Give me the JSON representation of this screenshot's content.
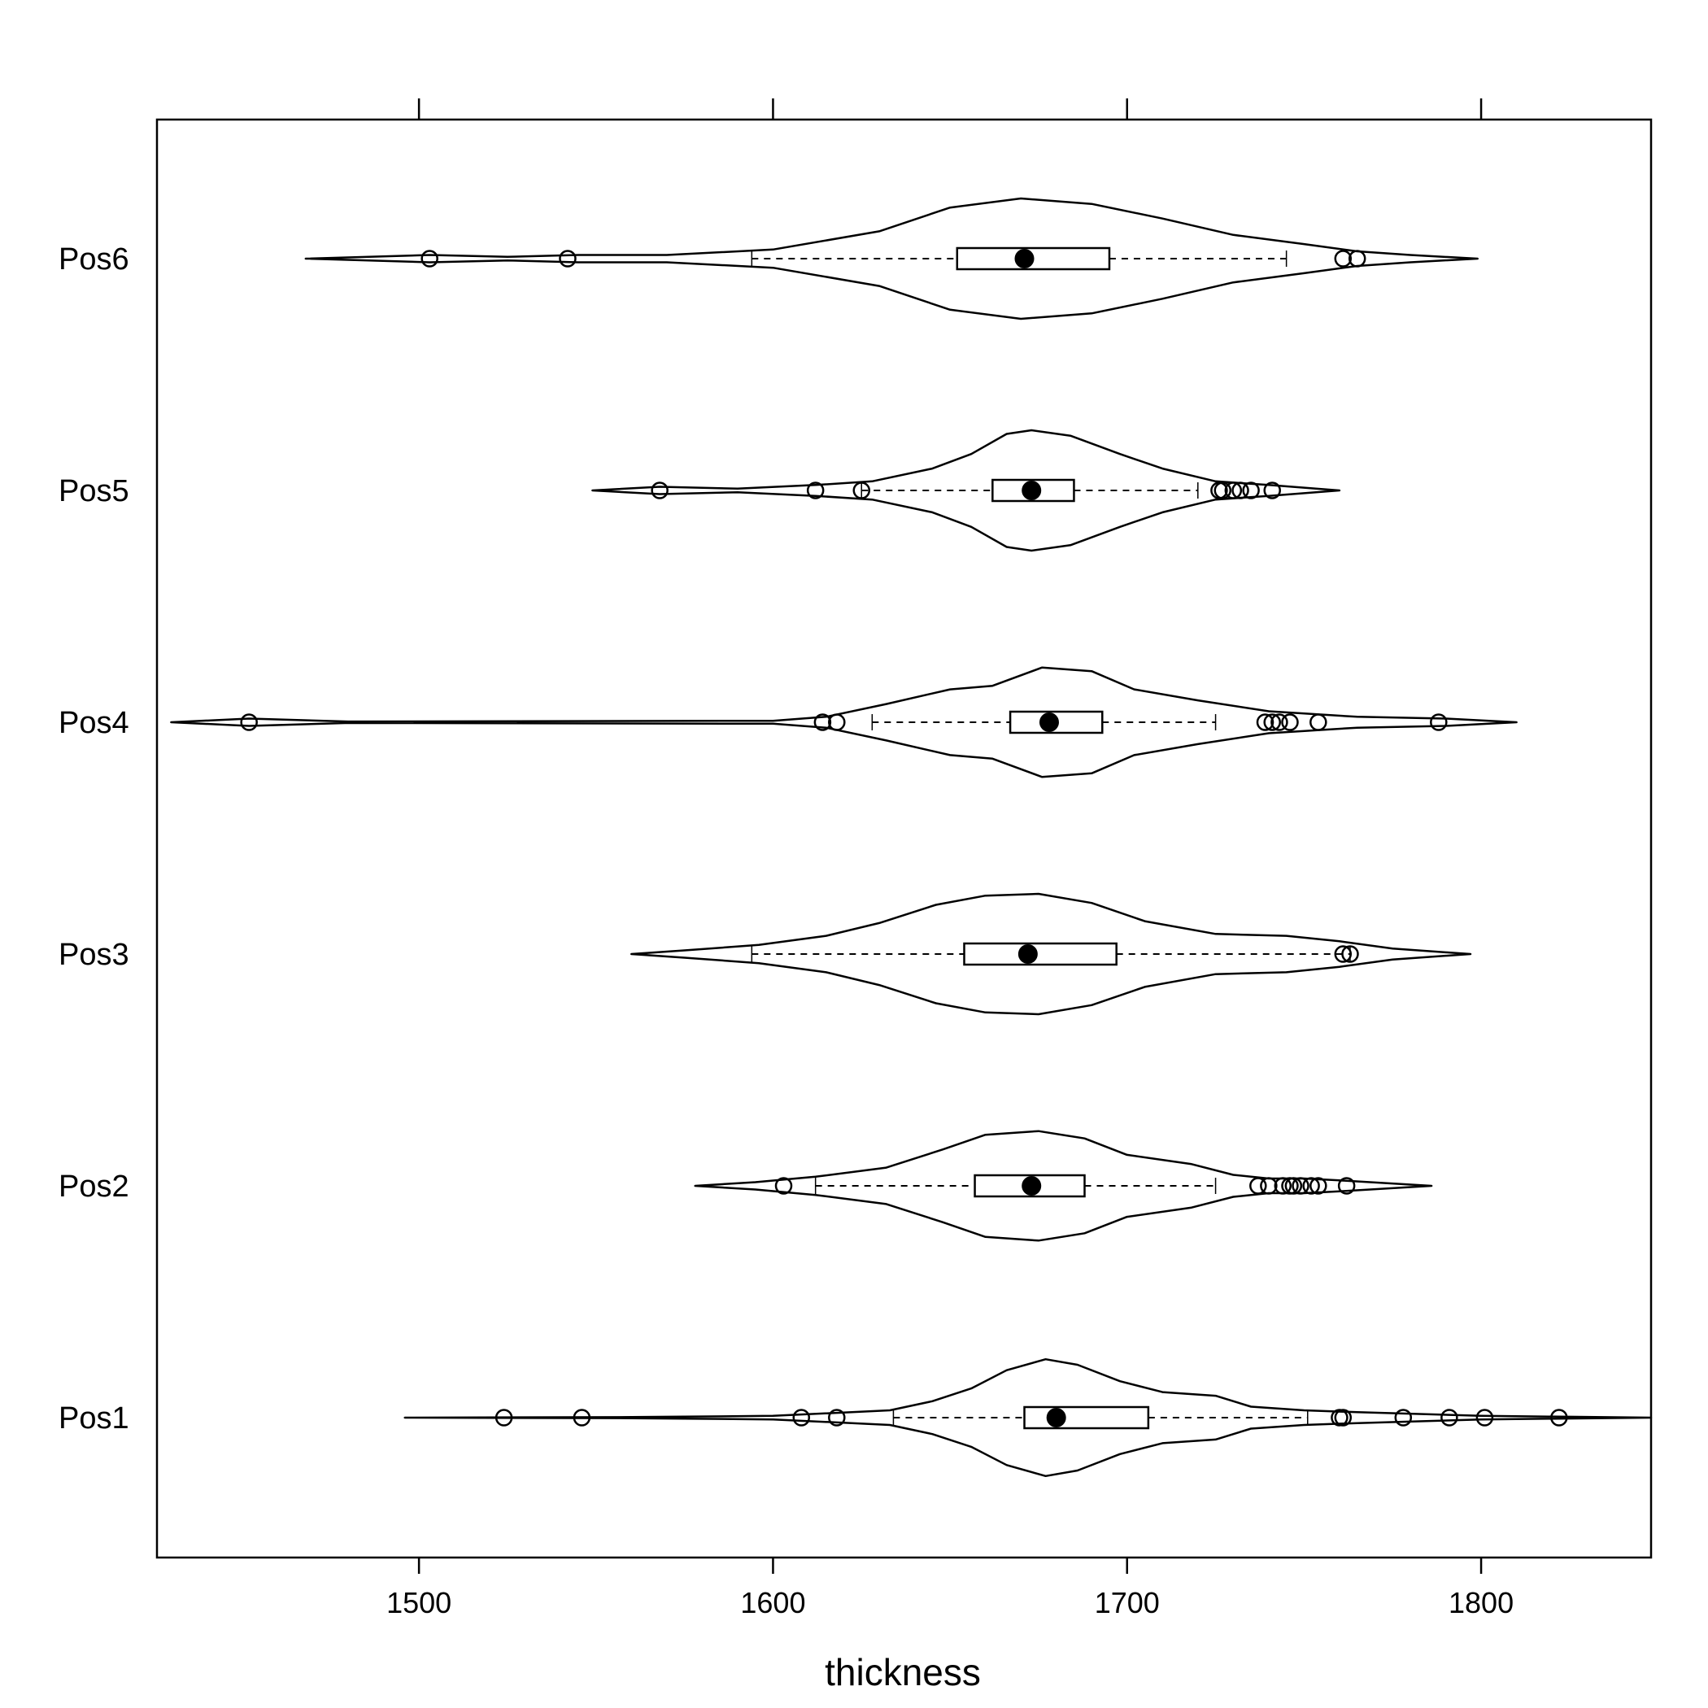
{
  "chart_data": {
    "type": "violin-box",
    "xlabel": "thickness",
    "xlim": [
      1426,
      1848
    ],
    "xticks": [
      1500,
      1600,
      1700,
      1800
    ],
    "xtick_labels": [
      "1500",
      "1600",
      "1700",
      "1800"
    ],
    "categories": [
      "Pos1",
      "Pos2",
      "Pos3",
      "Pos4",
      "Pos5",
      "Pos6"
    ],
    "groups": [
      {
        "name": "Pos1",
        "violin": [
          [
            1496,
            0
          ],
          [
            1560,
            0.3
          ],
          [
            1600,
            1
          ],
          [
            1633,
            4
          ],
          [
            1645,
            9
          ],
          [
            1656,
            16
          ],
          [
            1666,
            26
          ],
          [
            1677,
            32
          ],
          [
            1686,
            29
          ],
          [
            1698,
            20
          ],
          [
            1710,
            14
          ],
          [
            1725,
            12
          ],
          [
            1735,
            6
          ],
          [
            1750,
            4
          ],
          [
            1765,
            3
          ],
          [
            1800,
            1
          ],
          [
            1848,
            0
          ]
        ],
        "box": {
          "q1": 1671,
          "median": 1680,
          "q3": 1706
        },
        "whiskers": [
          1634,
          1751
        ],
        "outliers": [
          1524,
          1546,
          1608,
          1618,
          1760,
          1761,
          1778,
          1791,
          1801,
          1822
        ]
      },
      {
        "name": "Pos2",
        "violin": [
          [
            1578,
            0
          ],
          [
            1595,
            2
          ],
          [
            1612,
            5
          ],
          [
            1632,
            10
          ],
          [
            1648,
            20
          ],
          [
            1660,
            28
          ],
          [
            1675,
            30
          ],
          [
            1688,
            26
          ],
          [
            1700,
            17
          ],
          [
            1718,
            12
          ],
          [
            1730,
            6
          ],
          [
            1740,
            4
          ],
          [
            1750,
            4
          ],
          [
            1760,
            3
          ],
          [
            1786,
            0
          ]
        ],
        "box": {
          "q1": 1657,
          "median": 1673,
          "q3": 1688
        },
        "whiskers": [
          1612,
          1725
        ],
        "outliers": [
          1603,
          1737,
          1740,
          1744,
          1746,
          1747,
          1749,
          1752,
          1754,
          1762
        ]
      },
      {
        "name": "Pos3",
        "violin": [
          [
            1560,
            0
          ],
          [
            1575,
            2
          ],
          [
            1596,
            5
          ],
          [
            1615,
            10
          ],
          [
            1630,
            17
          ],
          [
            1646,
            27
          ],
          [
            1660,
            32
          ],
          [
            1675,
            33
          ],
          [
            1690,
            28
          ],
          [
            1705,
            18
          ],
          [
            1725,
            11
          ],
          [
            1745,
            10
          ],
          [
            1760,
            7
          ],
          [
            1775,
            3
          ],
          [
            1797,
            0
          ]
        ],
        "box": {
          "q1": 1654,
          "median": 1672,
          "q3": 1697
        },
        "whiskers": [
          1594,
          1763
        ],
        "outliers": [
          1761,
          1763
        ]
      },
      {
        "name": "Pos4",
        "violin": [
          [
            1430,
            0
          ],
          [
            1452,
            2
          ],
          [
            1480,
            0.4
          ],
          [
            1600,
            0.8
          ],
          [
            1615,
            3
          ],
          [
            1632,
            10
          ],
          [
            1650,
            18
          ],
          [
            1662,
            20
          ],
          [
            1676,
            30
          ],
          [
            1690,
            28
          ],
          [
            1702,
            18
          ],
          [
            1720,
            12
          ],
          [
            1740,
            6
          ],
          [
            1765,
            3
          ],
          [
            1790,
            2
          ],
          [
            1810,
            0
          ]
        ],
        "box": {
          "q1": 1667,
          "median": 1678,
          "q3": 1693
        },
        "whiskers": [
          1628,
          1725
        ],
        "outliers": [
          1452,
          1614,
          1618,
          1739,
          1741,
          1743,
          1746,
          1754,
          1788
        ]
      },
      {
        "name": "Pos5",
        "violin": [
          [
            1549,
            0
          ],
          [
            1568,
            2
          ],
          [
            1590,
            1
          ],
          [
            1612,
            3
          ],
          [
            1628,
            5
          ],
          [
            1645,
            12
          ],
          [
            1656,
            20
          ],
          [
            1666,
            31
          ],
          [
            1673,
            33
          ],
          [
            1684,
            30
          ],
          [
            1698,
            20
          ],
          [
            1710,
            12
          ],
          [
            1725,
            5
          ],
          [
            1740,
            3
          ],
          [
            1760,
            0
          ]
        ],
        "box": {
          "q1": 1662,
          "median": 1673,
          "q3": 1685
        },
        "whiskers": [
          1625,
          1720
        ],
        "outliers": [
          1568,
          1612,
          1625,
          1726,
          1727,
          1730,
          1732,
          1735,
          1741
        ]
      },
      {
        "name": "Pos6",
        "violin": [
          [
            1468,
            0
          ],
          [
            1503,
            2
          ],
          [
            1525,
            1
          ],
          [
            1545,
            2
          ],
          [
            1570,
            2
          ],
          [
            1600,
            5
          ],
          [
            1630,
            15
          ],
          [
            1650,
            28
          ],
          [
            1670,
            33
          ],
          [
            1690,
            30
          ],
          [
            1710,
            22
          ],
          [
            1730,
            13
          ],
          [
            1750,
            8
          ],
          [
            1765,
            4
          ],
          [
            1780,
            2
          ],
          [
            1799,
            0
          ]
        ],
        "box": {
          "q1": 1652,
          "median": 1671,
          "q3": 1695
        },
        "whiskers": [
          1594,
          1745
        ],
        "outliers": [
          1503,
          1542,
          1761,
          1765
        ]
      }
    ],
    "grid": false,
    "ticks_top": true
  }
}
